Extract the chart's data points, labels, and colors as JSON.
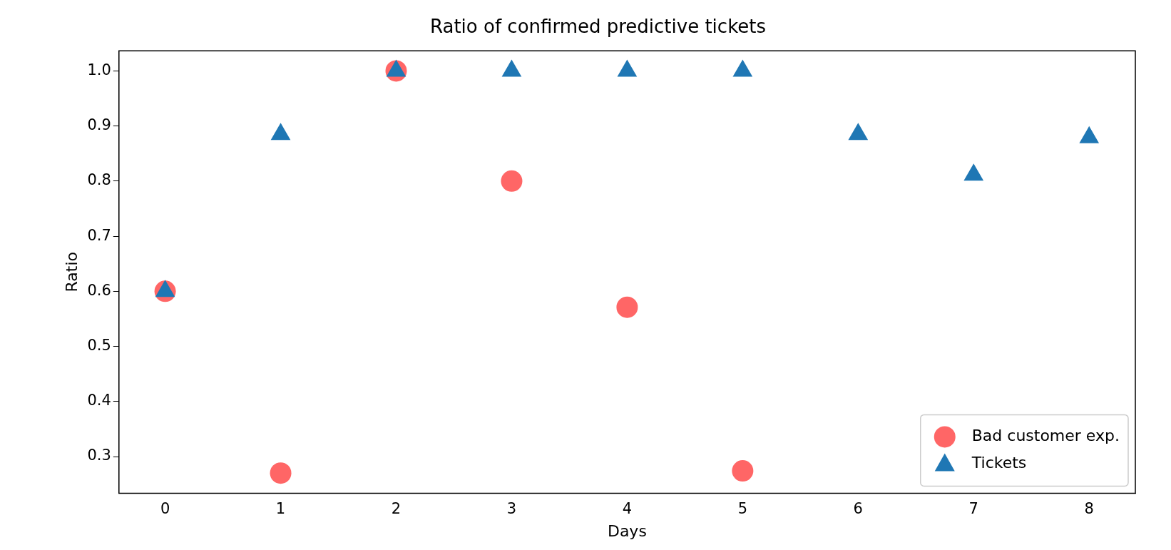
{
  "chart_data": {
    "type": "scatter",
    "title": "Ratio of confirmed predictive tickets",
    "xlabel": "Days",
    "ylabel": "Ratio",
    "xlim": [
      -0.4,
      8.4
    ],
    "xticks": [
      0,
      1,
      2,
      3,
      4,
      5,
      6,
      7,
      8
    ],
    "ylim": [
      0.2335,
      1.0365
    ],
    "yticks": [
      0.3,
      0.4,
      0.5,
      0.6,
      0.7,
      0.8,
      0.9,
      {
        "value": 1,
        "label": "1.0"
      }
    ],
    "grid": false,
    "legend": "bottom right",
    "series": [
      {
        "name": "Bad customer exp.",
        "color": "#ff6666",
        "marker": "circle",
        "x": [
          0,
          1,
          2,
          3,
          4,
          5
        ],
        "values": [
          0.6,
          0.27,
          1.0,
          0.8,
          0.571,
          0.274
        ]
      },
      {
        "name": "Tickets",
        "color": "#1f77b4",
        "marker": "triangle",
        "x": [
          0,
          1,
          2,
          3,
          4,
          5,
          6,
          7,
          8
        ],
        "values": [
          0.6,
          0.885,
          1.0,
          1.0,
          1.0,
          1.0,
          0.885,
          0.811,
          0.879
        ]
      }
    ]
  }
}
